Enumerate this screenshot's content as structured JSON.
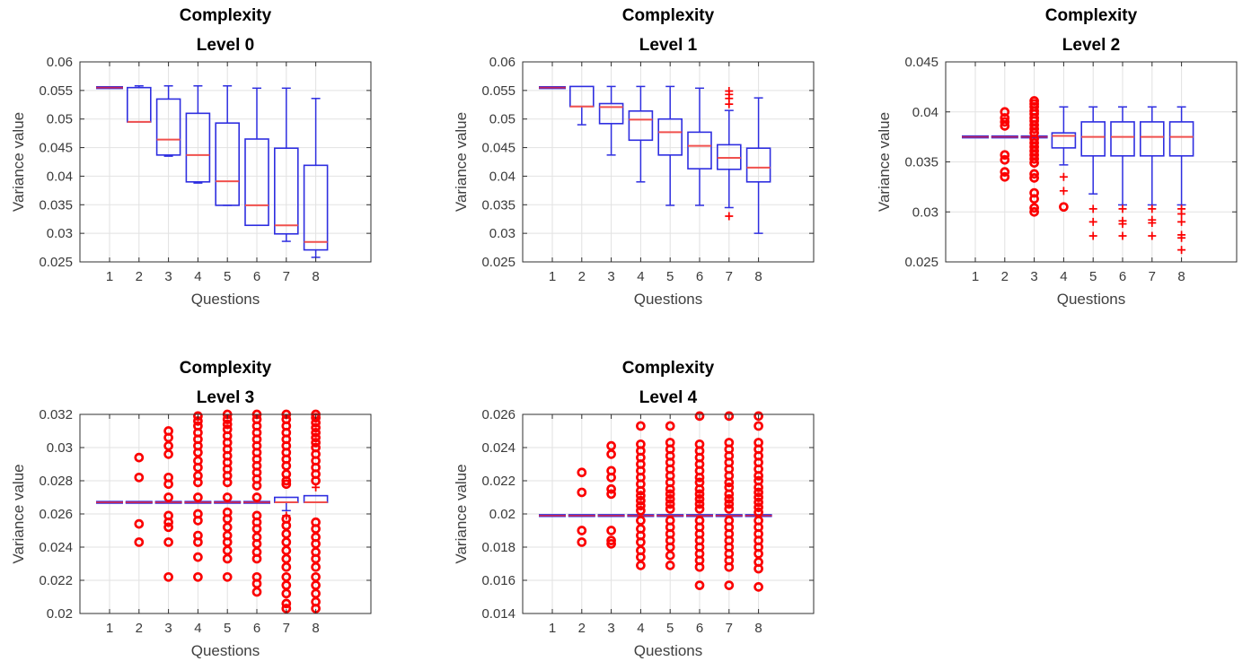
{
  "figure": {
    "background": "#ffffff",
    "subplot_count": 5
  },
  "style": {
    "box_color": "#2e2ee0",
    "median_color": "#f0504d",
    "collapsed_median_color": "#c2275e",
    "outlier_color": "#fb0000",
    "grid_color": "#e2e2e2",
    "axis_color": "#2f2f2f",
    "tick_text_color": "#3a3a3a",
    "label_text_color": "#404040",
    "title_color": "#000000"
  },
  "chart_data": [
    {
      "type": "boxplot",
      "title": "Complexity",
      "subtitle": "Level 0",
      "xlabel": "Questions",
      "ylabel": "Variance value",
      "categories": [
        "1",
        "2",
        "3",
        "4",
        "5",
        "6",
        "7",
        "8"
      ],
      "ylim": [
        0.025,
        0.06
      ],
      "yticks": [
        0.025,
        0.03,
        0.035,
        0.04,
        0.045,
        0.05,
        0.055,
        0.06
      ],
      "ytick_labels": [
        "0.025",
        "0.03",
        "0.035",
        "0.04",
        "0.045",
        "0.05",
        "0.055",
        "0.06"
      ],
      "grid": true,
      "boxes": [
        {
          "category": "1",
          "collapsed": true,
          "median": 0.0555
        },
        {
          "category": "2",
          "q1": 0.0495,
          "q3": 0.0555,
          "median": 0.0495,
          "whisker_high": 0.0558
        },
        {
          "category": "3",
          "q1": 0.0437,
          "q3": 0.0535,
          "median": 0.0464,
          "whisker_low": 0.0435,
          "whisker_high": 0.0558
        },
        {
          "category": "4",
          "q1": 0.039,
          "q3": 0.051,
          "median": 0.0437,
          "whisker_low": 0.0388,
          "whisker_high": 0.0558
        },
        {
          "category": "5",
          "q1": 0.0349,
          "q3": 0.0493,
          "median": 0.0391,
          "whisker_low": 0.0349,
          "whisker_high": 0.0558
        },
        {
          "category": "6",
          "q1": 0.0314,
          "q3": 0.0465,
          "median": 0.0349,
          "whisker_low": 0.0314,
          "whisker_high": 0.0554
        },
        {
          "category": "7",
          "q1": 0.0299,
          "q3": 0.0449,
          "median": 0.0314,
          "whisker_low": 0.0286,
          "whisker_high": 0.0554
        },
        {
          "category": "8",
          "q1": 0.0271,
          "q3": 0.0419,
          "median": 0.0285,
          "whisker_low": 0.0258,
          "whisker_high": 0.0536
        }
      ]
    },
    {
      "type": "boxplot",
      "title": "Complexity",
      "subtitle": "Level 1",
      "xlabel": "Questions",
      "ylabel": "Variance value",
      "categories": [
        "1",
        "2",
        "3",
        "4",
        "5",
        "6",
        "7",
        "8"
      ],
      "ylim": [
        0.025,
        0.06
      ],
      "yticks": [
        0.025,
        0.03,
        0.035,
        0.04,
        0.045,
        0.05,
        0.055,
        0.06
      ],
      "ytick_labels": [
        "0.025",
        "0.03",
        "0.035",
        "0.04",
        "0.045",
        "0.05",
        "0.055",
        "0.06"
      ],
      "grid": true,
      "boxes": [
        {
          "category": "1",
          "collapsed": true,
          "median": 0.0555
        },
        {
          "category": "2",
          "q1": 0.0522,
          "q3": 0.0557,
          "median": 0.0522,
          "whisker_low": 0.049
        },
        {
          "category": "3",
          "q1": 0.0492,
          "q3": 0.0527,
          "median": 0.0521,
          "whisker_low": 0.0437,
          "whisker_high": 0.0557
        },
        {
          "category": "4",
          "q1": 0.0463,
          "q3": 0.0514,
          "median": 0.0499,
          "whisker_low": 0.039,
          "whisker_high": 0.0557
        },
        {
          "category": "5",
          "q1": 0.0437,
          "q3": 0.05,
          "median": 0.0477,
          "whisker_low": 0.0349,
          "whisker_high": 0.0557
        },
        {
          "category": "6",
          "q1": 0.0413,
          "q3": 0.0477,
          "median": 0.0453,
          "whisker_low": 0.0349,
          "whisker_high": 0.0554
        },
        {
          "category": "7",
          "q1": 0.0412,
          "q3": 0.0455,
          "median": 0.0432,
          "whisker_low": 0.0345,
          "whisker_high": 0.0515,
          "outliers_plus": [
            0.0549,
            0.0543,
            0.0536,
            0.0526,
            0.033
          ]
        },
        {
          "category": "8",
          "q1": 0.039,
          "q3": 0.0449,
          "median": 0.0415,
          "whisker_low": 0.03,
          "whisker_high": 0.0537
        }
      ]
    },
    {
      "type": "boxplot",
      "title": "Complexity",
      "subtitle": "Level 2",
      "xlabel": "Questions",
      "ylabel": "Variance value",
      "categories": [
        "1",
        "2",
        "3",
        "4",
        "5",
        "6",
        "7",
        "8"
      ],
      "ylim": [
        0.025,
        0.045
      ],
      "yticks": [
        0.025,
        0.03,
        0.035,
        0.04,
        0.045
      ],
      "ytick_labels": [
        "0.025",
        "0.03",
        "0.035",
        "0.04",
        "0.045"
      ],
      "grid": true,
      "boxes": [
        {
          "category": "1",
          "collapsed": true,
          "median": 0.0375
        },
        {
          "category": "2",
          "collapsed": true,
          "median": 0.0375,
          "outliers_circle": [
            0.04,
            0.0394,
            0.039,
            0.0386,
            0.0357,
            0.0352,
            0.034,
            0.0335
          ]
        },
        {
          "category": "3",
          "collapsed": true,
          "median": 0.0375,
          "outliers_circle": [
            0.0411,
            0.0408,
            0.0405,
            0.0401,
            0.0398,
            0.0394,
            0.0391,
            0.0387,
            0.0383,
            0.0379,
            0.0373,
            0.0369,
            0.0365,
            0.0361,
            0.0357,
            0.0353,
            0.0349,
            0.0338,
            0.0334,
            0.0319,
            0.0313,
            0.0304,
            0.03
          ]
        },
        {
          "category": "4",
          "q1": 0.0364,
          "q3": 0.0379,
          "median": 0.0376,
          "whisker_low": 0.0347,
          "whisker_high": 0.0405,
          "outliers_plus": [
            0.0335,
            0.0321
          ],
          "outliers_circle": [
            0.0305
          ]
        },
        {
          "category": "5",
          "q1": 0.0356,
          "q3": 0.039,
          "median": 0.0375,
          "whisker_low": 0.0318,
          "whisker_high": 0.0405,
          "outliers_plus": [
            0.0303,
            0.029,
            0.0276
          ]
        },
        {
          "category": "6",
          "q1": 0.0356,
          "q3": 0.039,
          "median": 0.0375,
          "whisker_low": 0.0307,
          "whisker_high": 0.0405,
          "outliers_plus": [
            0.0303,
            0.0291,
            0.0288,
            0.0276
          ]
        },
        {
          "category": "7",
          "q1": 0.0356,
          "q3": 0.039,
          "median": 0.0375,
          "whisker_low": 0.0307,
          "whisker_high": 0.0405,
          "outliers_plus": [
            0.0303,
            0.0292,
            0.0289,
            0.0276
          ]
        },
        {
          "category": "8",
          "q1": 0.0356,
          "q3": 0.039,
          "median": 0.0375,
          "whisker_low": 0.0307,
          "whisker_high": 0.0405,
          "outliers_plus": [
            0.0303,
            0.0298,
            0.029,
            0.0277,
            0.0274,
            0.0262
          ]
        }
      ]
    },
    {
      "type": "boxplot",
      "title": "Complexity",
      "subtitle": "Level 3",
      "xlabel": "Questions",
      "ylabel": "Variance value",
      "categories": [
        "1",
        "2",
        "3",
        "4",
        "5",
        "6",
        "7",
        "8"
      ],
      "ylim": [
        0.02,
        0.032
      ],
      "yticks": [
        0.02,
        0.022,
        0.024,
        0.026,
        0.028,
        0.03,
        0.032
      ],
      "ytick_labels": [
        "0.02",
        "0.022",
        "0.024",
        "0.026",
        "0.028",
        "0.03",
        "0.032"
      ],
      "grid": true,
      "boxes": [
        {
          "category": "1",
          "collapsed": true,
          "median": 0.0267
        },
        {
          "category": "2",
          "collapsed": true,
          "median": 0.0267,
          "outliers_circle": [
            0.0294,
            0.0282,
            0.0254,
            0.0243
          ]
        },
        {
          "category": "3",
          "collapsed": true,
          "median": 0.0267,
          "outliers_circle": [
            0.031,
            0.0306,
            0.0301,
            0.0296,
            0.0282,
            0.0278,
            0.027,
            0.0259,
            0.0255,
            0.0252,
            0.0243,
            0.0222
          ]
        },
        {
          "category": "4",
          "collapsed": true,
          "median": 0.0267,
          "outliers_circle": [
            0.0319,
            0.0316,
            0.0313,
            0.0309,
            0.0305,
            0.0301,
            0.0297,
            0.0292,
            0.0288,
            0.0283,
            0.0279,
            0.027,
            0.026,
            0.0256,
            0.0247,
            0.0243,
            0.0234,
            0.0222
          ]
        },
        {
          "category": "5",
          "collapsed": true,
          "median": 0.0267,
          "outliers_circle": [
            0.032,
            0.0317,
            0.0314,
            0.0311,
            0.0307,
            0.0303,
            0.0299,
            0.0295,
            0.0291,
            0.0287,
            0.0283,
            0.0279,
            0.027,
            0.0261,
            0.0257,
            0.0252,
            0.0247,
            0.0243,
            0.0238,
            0.0233,
            0.0222
          ]
        },
        {
          "category": "6",
          "collapsed": true,
          "median": 0.0267,
          "outliers_circle": [
            0.032,
            0.0317,
            0.0313,
            0.0309,
            0.0305,
            0.0301,
            0.0297,
            0.0293,
            0.0289,
            0.0285,
            0.0281,
            0.0277,
            0.027,
            0.0259,
            0.0255,
            0.0251,
            0.0246,
            0.0242,
            0.0237,
            0.0233,
            0.0222,
            0.0218,
            0.0213
          ]
        },
        {
          "category": "7",
          "q1": 0.0267,
          "q3": 0.027,
          "median": 0.0267,
          "whisker_low": 0.0262,
          "outliers_plus": [
            0.0259
          ],
          "outliers_circle": [
            0.032,
            0.0317,
            0.0313,
            0.0309,
            0.0305,
            0.0301,
            0.0297,
            0.0293,
            0.0289,
            0.0284,
            0.028,
            0.0278,
            0.0257,
            0.0253,
            0.0248,
            0.0243,
            0.0238,
            0.0233,
            0.0228,
            0.0222,
            0.0217,
            0.0212,
            0.0206,
            0.0203
          ]
        },
        {
          "category": "8",
          "q1": 0.0267,
          "q3": 0.0271,
          "median": 0.0267,
          "outliers_plus": [
            0.0276
          ],
          "outliers_circle": [
            0.032,
            0.0318,
            0.0315,
            0.0312,
            0.0309,
            0.0306,
            0.0303,
            0.03,
            0.0296,
            0.0292,
            0.0288,
            0.0284,
            0.028,
            0.0255,
            0.0251,
            0.0246,
            0.0242,
            0.0237,
            0.0233,
            0.0228,
            0.0222,
            0.0217,
            0.0212,
            0.0207,
            0.0203
          ]
        }
      ]
    },
    {
      "type": "boxplot",
      "title": "Complexity",
      "subtitle": "Level 4",
      "xlabel": "Questions",
      "ylabel": "Variance value",
      "categories": [
        "1",
        "2",
        "3",
        "4",
        "5",
        "6",
        "7",
        "8"
      ],
      "ylim": [
        0.014,
        0.026
      ],
      "yticks": [
        0.014,
        0.016,
        0.018,
        0.02,
        0.022,
        0.024,
        0.026
      ],
      "ytick_labels": [
        "0.014",
        "0.016",
        "0.018",
        "0.02",
        "0.022",
        "0.024",
        "0.026"
      ],
      "grid": true,
      "boxes": [
        {
          "category": "1",
          "collapsed": true,
          "median": 0.0199
        },
        {
          "category": "2",
          "collapsed": true,
          "median": 0.0199,
          "outliers_circle": [
            0.0225,
            0.0213,
            0.019,
            0.0183
          ]
        },
        {
          "category": "3",
          "collapsed": true,
          "median": 0.0199,
          "outliers_circle": [
            0.0241,
            0.0236,
            0.0226,
            0.0222,
            0.0215,
            0.0212,
            0.019,
            0.0184,
            0.0182
          ]
        },
        {
          "category": "4",
          "collapsed": true,
          "median": 0.0199,
          "outliers_circle": [
            0.0253,
            0.0242,
            0.0238,
            0.0234,
            0.023,
            0.0226,
            0.0222,
            0.0218,
            0.0214,
            0.0211,
            0.0208,
            0.0205,
            0.0202,
            0.0196,
            0.0191,
            0.0187,
            0.0183,
            0.0178,
            0.0174,
            0.0169
          ]
        },
        {
          "category": "5",
          "collapsed": true,
          "median": 0.0199,
          "outliers_circle": [
            0.0253,
            0.0243,
            0.0239,
            0.0235,
            0.0231,
            0.0227,
            0.0223,
            0.0219,
            0.0215,
            0.0212,
            0.0209,
            0.0206,
            0.0203,
            0.0196,
            0.0192,
            0.0188,
            0.0184,
            0.018,
            0.0175,
            0.0169
          ]
        },
        {
          "category": "6",
          "collapsed": true,
          "median": 0.0199,
          "outliers_circle": [
            0.0259,
            0.0242,
            0.0238,
            0.0234,
            0.023,
            0.0226,
            0.0222,
            0.0219,
            0.0215,
            0.0212,
            0.0209,
            0.0206,
            0.0203,
            0.0196,
            0.0192,
            0.0188,
            0.0184,
            0.018,
            0.0176,
            0.0172,
            0.0168,
            0.0157
          ]
        },
        {
          "category": "7",
          "collapsed": true,
          "median": 0.0199,
          "outliers_circle": [
            0.0259,
            0.0243,
            0.0239,
            0.0235,
            0.0231,
            0.0227,
            0.0223,
            0.0219,
            0.0216,
            0.0212,
            0.0209,
            0.0206,
            0.0203,
            0.0196,
            0.0192,
            0.0188,
            0.0184,
            0.018,
            0.0176,
            0.0172,
            0.0168,
            0.0157
          ]
        },
        {
          "category": "8",
          "collapsed": true,
          "median": 0.0199,
          "outliers_circle": [
            0.0259,
            0.0253,
            0.0243,
            0.0239,
            0.0235,
            0.0231,
            0.0227,
            0.0223,
            0.022,
            0.0216,
            0.0213,
            0.021,
            0.0207,
            0.0204,
            0.0201,
            0.0196,
            0.0192,
            0.0188,
            0.0184,
            0.018,
            0.0176,
            0.0171,
            0.0167,
            0.0156
          ]
        }
      ]
    }
  ]
}
